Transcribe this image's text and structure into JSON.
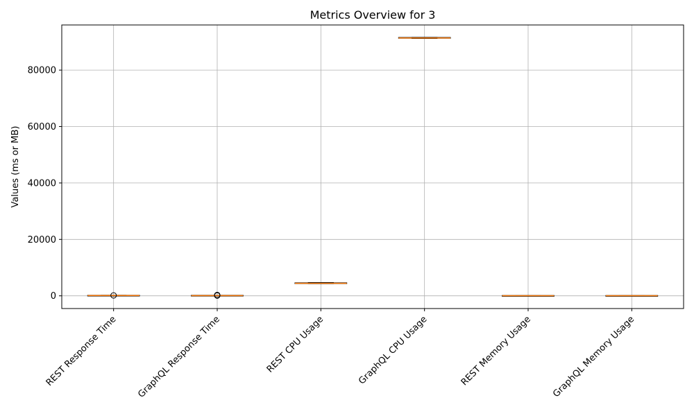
{
  "chart_data": {
    "type": "box",
    "title": "Metrics Overview for 3",
    "xlabel": "",
    "ylabel": "Values (ms or MB)",
    "ylim": [
      -4500,
      96000
    ],
    "yticks": [
      0,
      20000,
      40000,
      60000,
      80000
    ],
    "grid": true,
    "categories": [
      "REST Response Time",
      "GraphQL Response Time",
      "REST CPU Usage",
      "GraphQL CPU Usage",
      "REST Memory Usage",
      "GraphQL Memory Usage"
    ],
    "boxes": [
      {
        "min": 20,
        "q1": 60,
        "median": 100,
        "q3": 140,
        "max": 200,
        "outliers": [
          150
        ]
      },
      {
        "min": 20,
        "q1": 60,
        "median": 90,
        "q3": 130,
        "max": 180,
        "outliers": [
          100,
          200,
          300
        ]
      },
      {
        "min": 4300,
        "q1": 4350,
        "median": 4450,
        "q3": 4550,
        "max": 4700,
        "outliers": []
      },
      {
        "min": 91200,
        "q1": 91300,
        "median": 91400,
        "q3": 91500,
        "max": 91600,
        "outliers": []
      },
      {
        "min": 30,
        "q1": 40,
        "median": 50,
        "q3": 60,
        "max": 70,
        "outliers": []
      },
      {
        "min": 30,
        "q1": 40,
        "median": 50,
        "q3": 60,
        "max": 70,
        "outliers": []
      }
    ],
    "colors": {
      "median": "#ff7f0e",
      "box": "#000000",
      "grid": "#b0b0b0",
      "outlier": "#000000"
    }
  }
}
